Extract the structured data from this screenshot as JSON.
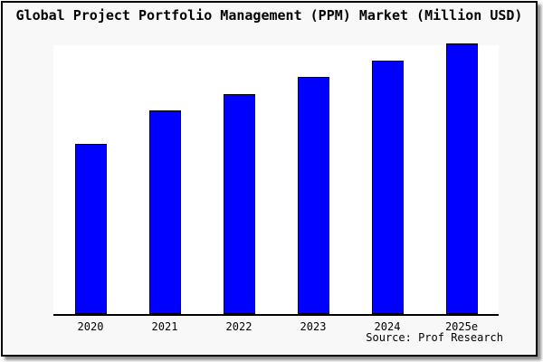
{
  "figure": {
    "background": "#f8f8f8",
    "frame_border_color": "#000000",
    "title": "Global Project Portfolio Management (PPM) Market (Million USD)",
    "source_note": "Source: Prof Research"
  },
  "chart_data": {
    "type": "bar",
    "title": "Global Project Portfolio Management (PPM) Market (Million USD)",
    "unit": "Million USD",
    "categories": [
      "2020",
      "2021",
      "2022",
      "2023",
      "2024",
      "2025e"
    ],
    "values": [
      10,
      12,
      13,
      14,
      15,
      16
    ],
    "values_note": "Y-axis has no tick labels; values are relative units measured from bar heights (62.5%, 75%, 81.3%, 87.5%, 93.8%, 100% of tallest bar).",
    "xlabel": "",
    "ylabel": "",
    "ylim": [
      0,
      16
    ],
    "grid": false,
    "legend": false,
    "plot_background": "#ffffff",
    "axis_color": "#000000",
    "bar_color": "#0000ff",
    "bar_border_color": "#000000"
  }
}
